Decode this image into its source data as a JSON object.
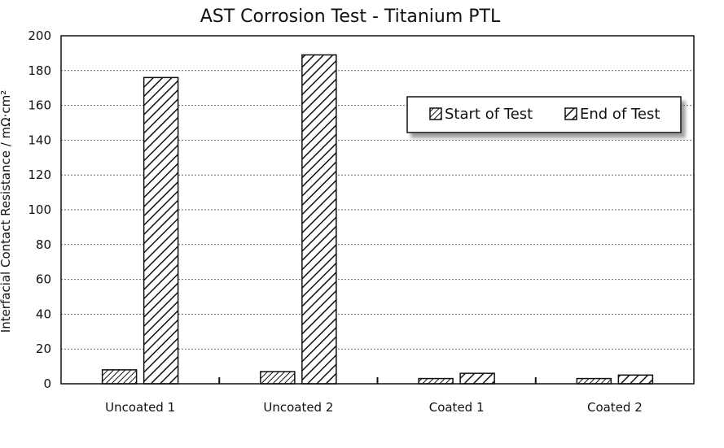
{
  "chart_data": {
    "type": "bar",
    "title": "AST Corrosion Test - Titanium PTL",
    "xlabel": "",
    "ylabel": "Interfacial Contact Resistance / mΩ·cm²",
    "categories": [
      "Uncoated 1",
      "Uncoated 2",
      "Coated 1",
      "Coated 2"
    ],
    "series": [
      {
        "name": "Start of Test",
        "values": [
          8,
          7,
          3,
          3
        ],
        "pattern": "dense-hatch"
      },
      {
        "name": "End of Test",
        "values": [
          176,
          189,
          6,
          5
        ],
        "pattern": "wide-hatch"
      }
    ],
    "ylim": [
      0,
      200
    ],
    "yticks": [
      "0",
      "20",
      "40",
      "60",
      "80",
      "100",
      "120",
      "140",
      "160",
      "180",
      "200"
    ],
    "grid": true,
    "legend_position": "top-right",
    "colors": {
      "bar_stroke": "#111111",
      "hatch": "#111111",
      "grid": "#555555"
    }
  }
}
